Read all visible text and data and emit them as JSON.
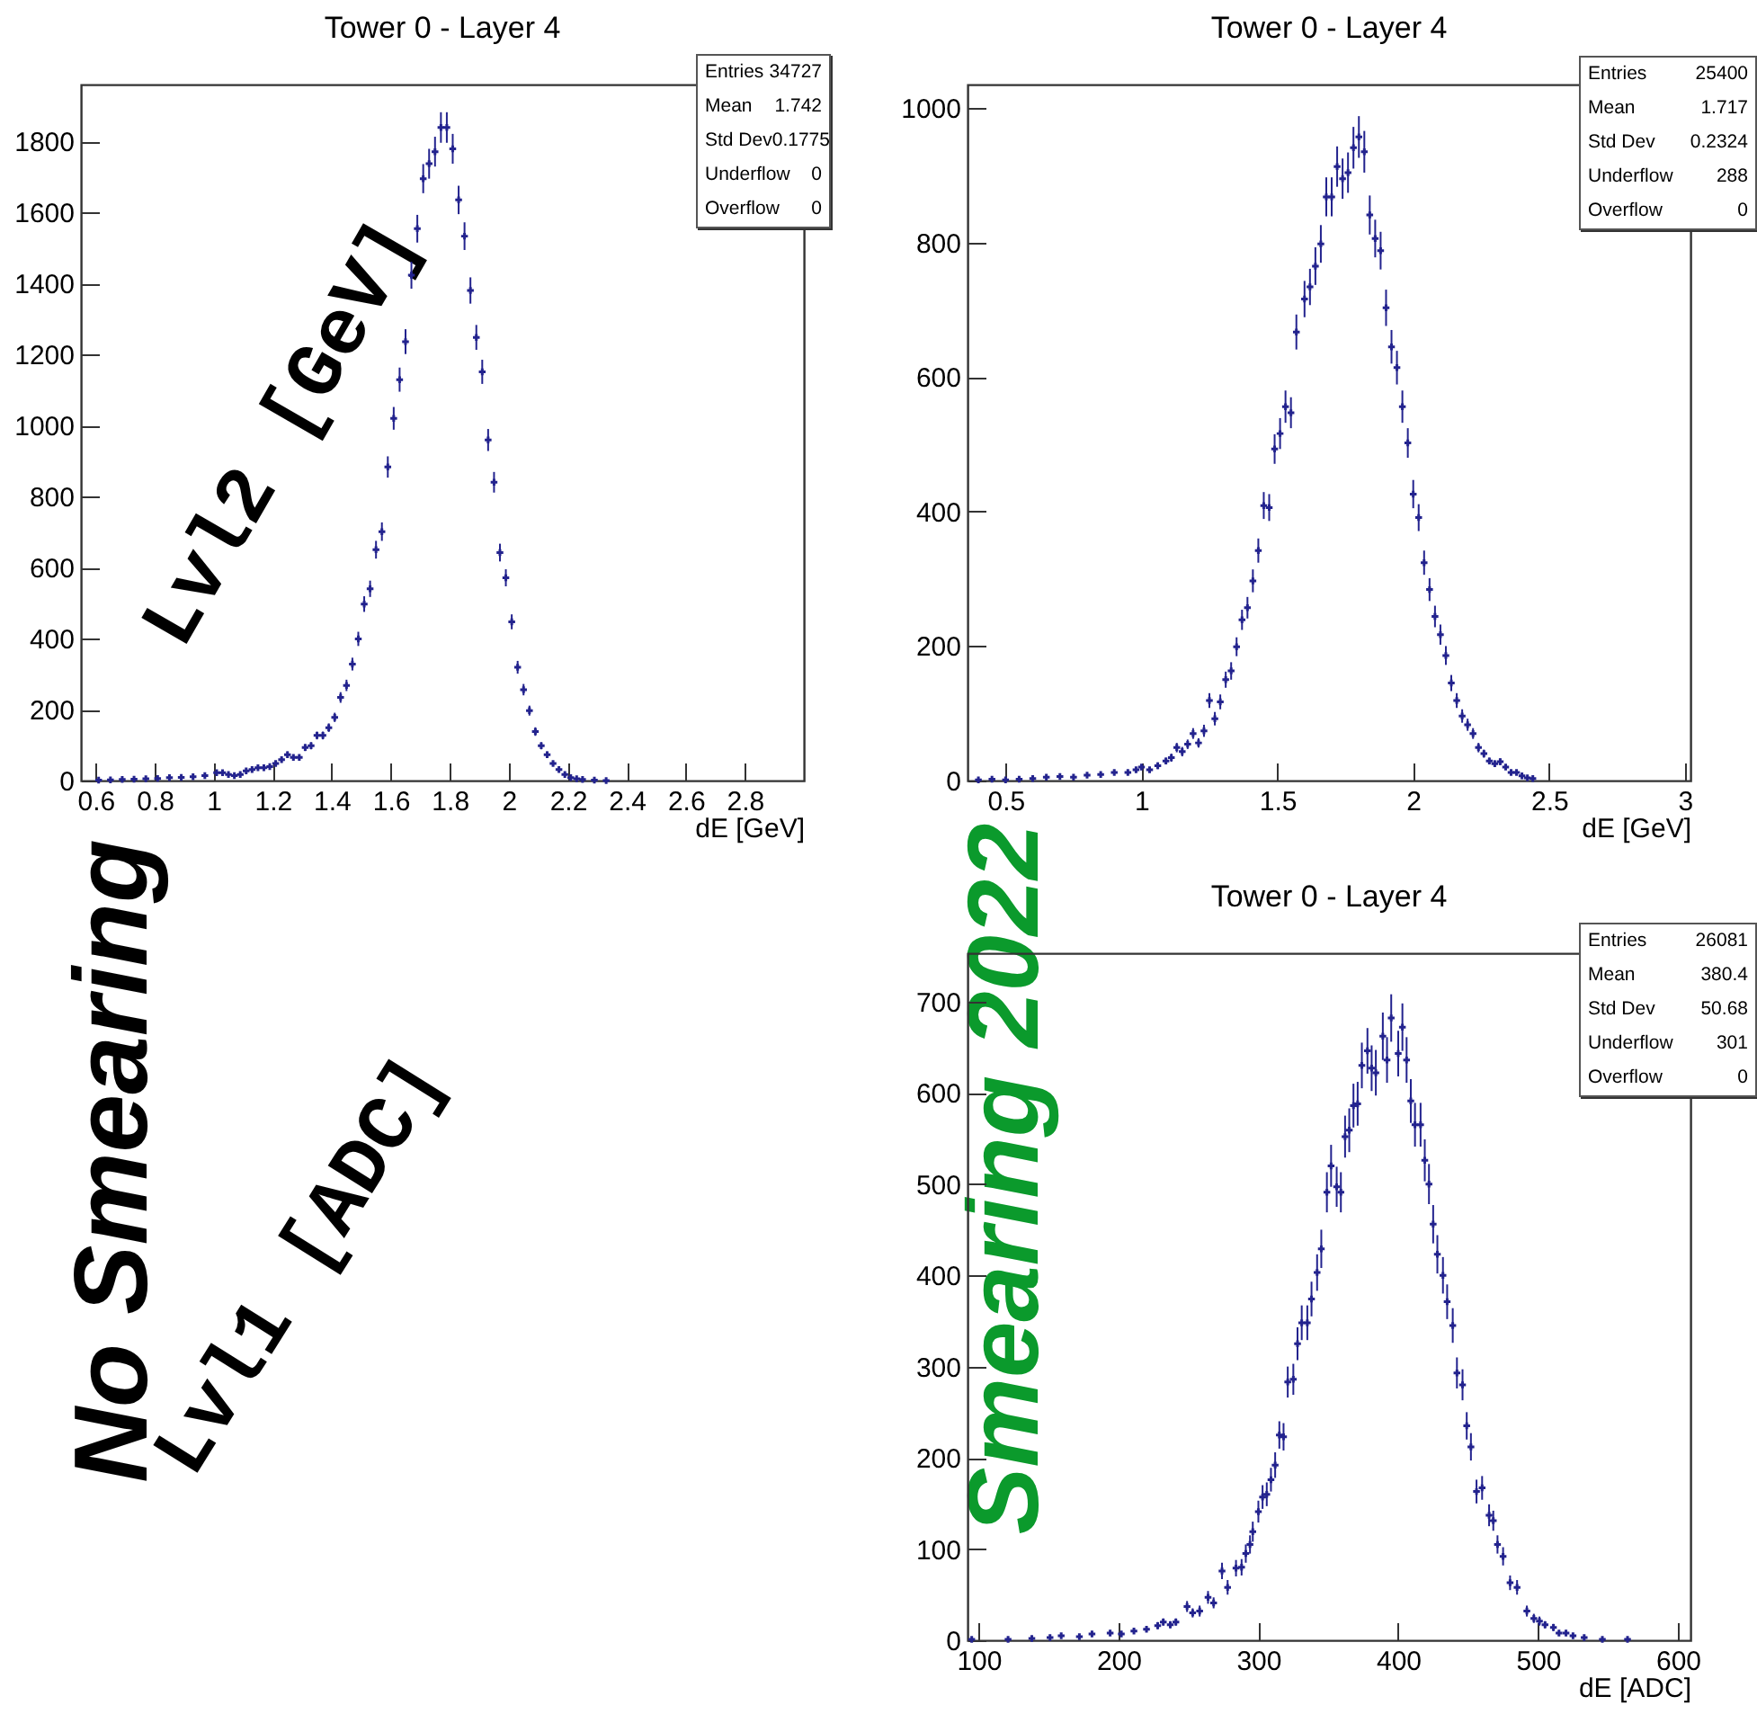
{
  "chart_data": [
    {
      "type": "scatter",
      "title": "Tower 0 - Layer 4",
      "xlabel": "dE [GeV]",
      "marker": "cross",
      "grid": false,
      "annotations": [
        "Entries",
        "34727",
        "Mean",
        "1.742",
        "Std Dev",
        "0.1775",
        "Underflow",
        "0",
        "Overflow",
        "0"
      ],
      "xlim": [
        0.55,
        3.0
      ],
      "xticks": [
        0.6,
        0.8,
        1,
        1.2,
        1.4,
        1.6,
        1.8,
        2,
        2.2,
        2.4,
        2.6,
        2.8
      ],
      "ylim": [
        0,
        1960
      ],
      "yticks": [
        0,
        200,
        400,
        600,
        800,
        1000,
        1200,
        1400,
        1600,
        1800
      ],
      "x": [
        0.61,
        0.65,
        0.69,
        0.73,
        0.77,
        0.81,
        0.85,
        0.89,
        0.93,
        0.97,
        1.01,
        1.03,
        1.05,
        1.07,
        1.09,
        1.11,
        1.13,
        1.15,
        1.17,
        1.19,
        1.21,
        1.23,
        1.25,
        1.27,
        1.29,
        1.31,
        1.33,
        1.35,
        1.37,
        1.39,
        1.41,
        1.43,
        1.45,
        1.47,
        1.49,
        1.51,
        1.53,
        1.55,
        1.57,
        1.59,
        1.61,
        1.63,
        1.65,
        1.67,
        1.69,
        1.71,
        1.73,
        1.75,
        1.77,
        1.79,
        1.81,
        1.83,
        1.85,
        1.87,
        1.89,
        1.91,
        1.93,
        1.95,
        1.97,
        1.99,
        2.01,
        2.03,
        2.05,
        2.07,
        2.09,
        2.11,
        2.13,
        2.15,
        2.17,
        2.19,
        2.21,
        2.23,
        2.25,
        2.29,
        2.33
      ],
      "series": [
        {
          "color": "#23238e",
          "values": [
            1,
            2,
            3,
            4,
            5,
            6,
            8,
            9,
            11,
            14,
            22,
            22,
            17,
            14,
            17,
            27,
            31,
            36,
            36,
            39,
            48,
            59,
            73,
            65,
            65,
            93,
            98,
            127,
            127,
            149,
            178,
            234,
            268,
            328,
            399,
            497,
            540,
            650,
            701,
            883,
            1020,
            1129,
            1236,
            1423,
            1554,
            1695,
            1737,
            1771,
            1839,
            1839,
            1779,
            1635,
            1533,
            1380,
            1248,
            1151,
            959,
            840,
            642,
            571,
            447,
            319,
            256,
            197,
            138,
            98,
            73,
            48,
            31,
            17,
            8,
            5,
            3,
            1,
            0
          ],
          "errors": [
            null,
            null,
            null,
            null,
            null,
            null,
            3,
            3,
            3,
            4,
            5,
            5,
            4,
            4,
            4,
            5,
            6,
            6,
            6,
            6,
            7,
            8,
            9,
            8,
            8,
            10,
            10,
            11,
            11,
            12,
            13,
            15,
            16,
            18,
            20,
            22,
            23,
            25,
            26,
            30,
            32,
            34,
            35,
            38,
            39,
            41,
            42,
            42,
            43,
            43,
            42,
            40,
            39,
            37,
            35,
            34,
            31,
            29,
            25,
            24,
            21,
            18,
            16,
            14,
            12,
            10,
            9,
            7,
            6,
            4,
            3,
            null,
            null,
            null,
            null
          ]
        }
      ]
    },
    {
      "type": "scatter",
      "title": "Tower 0 - Layer 4",
      "xlabel": "dE [GeV]",
      "marker": "cross",
      "grid": false,
      "annotations": [
        "Entries",
        "25400",
        "Mean",
        "1.717",
        "Std Dev",
        "0.2324",
        "Underflow",
        "288",
        "Overflow",
        "0"
      ],
      "xlim": [
        0.36,
        3.02
      ],
      "xticks": [
        0.5,
        1,
        1.5,
        2,
        2.5,
        3
      ],
      "ylim": [
        0,
        1035
      ],
      "yticks": [
        0,
        200,
        400,
        600,
        800,
        1000
      ],
      "x": [
        0.4,
        0.45,
        0.5,
        0.55,
        0.6,
        0.65,
        0.7,
        0.75,
        0.8,
        0.85,
        0.9,
        0.95,
        0.98,
        1.0,
        1.03,
        1.06,
        1.09,
        1.11,
        1.13,
        1.15,
        1.17,
        1.19,
        1.21,
        1.23,
        1.25,
        1.27,
        1.29,
        1.31,
        1.33,
        1.35,
        1.37,
        1.39,
        1.41,
        1.43,
        1.45,
        1.47,
        1.49,
        1.51,
        1.53,
        1.55,
        1.57,
        1.6,
        1.62,
        1.64,
        1.66,
        1.68,
        1.7,
        1.72,
        1.74,
        1.76,
        1.78,
        1.8,
        1.82,
        1.84,
        1.86,
        1.88,
        1.9,
        1.92,
        1.94,
        1.96,
        1.98,
        2.0,
        2.02,
        2.04,
        2.06,
        2.08,
        2.1,
        2.12,
        2.14,
        2.16,
        2.18,
        2.2,
        2.22,
        2.24,
        2.26,
        2.28,
        2.3,
        2.32,
        2.34,
        2.36,
        2.38,
        2.4,
        2.42,
        2.44
      ],
      "series": [
        {
          "color": "#23238e",
          "values": [
            1,
            2,
            1,
            2,
            3,
            5,
            6,
            5,
            8,
            9,
            12,
            12,
            16,
            20,
            16,
            22,
            29,
            34,
            49,
            43,
            54,
            70,
            56,
            74,
            119,
            92,
            117,
            150,
            163,
            199,
            239,
            257,
            297,
            342,
            409,
            406,
            493,
            516,
            556,
            547,
            667,
            716,
            734,
            765,
            798,
            868,
            868,
            913,
            895,
            904,
            941,
            957,
            935,
            841,
            806,
            788,
            703,
            645,
            614,
            556,
            502,
            426,
            391,
            324,
            284,
            244,
            217,
            186,
            145,
            119,
            96,
            83,
            70,
            49,
            40,
            29,
            25,
            28,
            20,
            12,
            12,
            7,
            4,
            3
          ],
          "errors": [
            null,
            null,
            null,
            null,
            null,
            null,
            null,
            null,
            3,
            3,
            3,
            3,
            4,
            4,
            4,
            5,
            5,
            6,
            7,
            7,
            7,
            8,
            7,
            9,
            11,
            10,
            11,
            12,
            13,
            14,
            15,
            16,
            17,
            18,
            20,
            20,
            22,
            23,
            24,
            23,
            26,
            27,
            27,
            28,
            28,
            29,
            29,
            30,
            30,
            30,
            31,
            31,
            31,
            29,
            28,
            28,
            27,
            25,
            25,
            24,
            22,
            21,
            20,
            18,
            17,
            16,
            15,
            14,
            12,
            11,
            10,
            9,
            8,
            7,
            6,
            5,
            5,
            5,
            4,
            3,
            3,
            null,
            null,
            null
          ]
        }
      ]
    },
    {
      "type": "scatter",
      "title": "Tower 0 - Layer 4",
      "xlabel": "dE [ADC]",
      "marker": "cross",
      "grid": false,
      "annotations": [
        "Entries",
        "26081",
        "Mean",
        "380.4",
        "Std Dev",
        "50.68",
        "Underflow",
        "301",
        "Overflow",
        "0"
      ],
      "xlim": [
        92,
        609
      ],
      "xticks": [
        100,
        200,
        300,
        400,
        500,
        600
      ],
      "ylim": [
        0,
        753
      ],
      "yticks": [
        0,
        100,
        200,
        300,
        400,
        500,
        600,
        700
      ],
      "x": [
        95,
        121,
        138,
        151,
        159,
        172,
        181,
        194,
        202,
        211,
        220,
        228,
        232,
        237,
        241,
        249,
        253,
        258,
        264,
        268,
        274,
        278,
        284,
        288,
        291,
        294,
        296,
        300,
        303,
        306,
        309,
        312,
        315,
        318,
        321,
        325,
        328,
        331,
        335,
        338,
        342,
        345,
        349,
        352,
        356,
        359,
        362,
        365,
        368,
        371,
        374,
        378,
        381,
        384,
        389,
        392,
        395,
        400,
        403,
        406,
        409,
        412,
        416,
        419,
        422,
        425,
        428,
        432,
        435,
        439,
        442,
        446,
        449,
        452,
        456,
        460,
        465,
        468,
        471,
        475,
        480,
        485,
        492,
        497,
        501,
        505,
        511,
        515,
        520,
        525,
        533,
        546,
        564
      ],
      "series": [
        {
          "color": "#23238e",
          "values": [
            1,
            1,
            2,
            3,
            5,
            4,
            7,
            8,
            7,
            10,
            12,
            16,
            20,
            17,
            20,
            37,
            30,
            32,
            47,
            41,
            76,
            58,
            79,
            80,
            95,
            105,
            119,
            141,
            157,
            160,
            176,
            192,
            225,
            223,
            283,
            286,
            325,
            348,
            348,
            374,
            403,
            429,
            491,
            520,
            497,
            491,
            552,
            559,
            586,
            588,
            630,
            646,
            627,
            622,
            662,
            636,
            682,
            643,
            672,
            636,
            591,
            565,
            565,
            526,
            500,
            456,
            423,
            400,
            371,
            345,
            293,
            280,
            235,
            212,
            163,
            167,
            137,
            131,
            105,
            92,
            63,
            58,
            32,
            24,
            21,
            17,
            14,
            8,
            8,
            5,
            3,
            1,
            1
          ],
          "errors": [
            null,
            null,
            null,
            null,
            null,
            null,
            3,
            3,
            3,
            3,
            3,
            4,
            4,
            4,
            4,
            6,
            5,
            6,
            7,
            6,
            9,
            8,
            9,
            9,
            10,
            10,
            11,
            12,
            13,
            13,
            13,
            14,
            15,
            15,
            17,
            17,
            18,
            19,
            19,
            19,
            20,
            21,
            22,
            23,
            22,
            22,
            23,
            24,
            24,
            24,
            25,
            25,
            25,
            25,
            26,
            25,
            26,
            25,
            26,
            25,
            24,
            24,
            24,
            23,
            22,
            21,
            21,
            20,
            19,
            19,
            17,
            17,
            15,
            15,
            13,
            13,
            12,
            11,
            10,
            10,
            8,
            8,
            6,
            5,
            5,
            4,
            4,
            3,
            3,
            null,
            null,
            null,
            null
          ]
        }
      ]
    },
    {
      "type": "other",
      "annotations": [
        "No Smearing",
        "Lvl2 [GeV]",
        "Lvl1 [ADC]",
        "Smearing 2022"
      ]
    }
  ]
}
